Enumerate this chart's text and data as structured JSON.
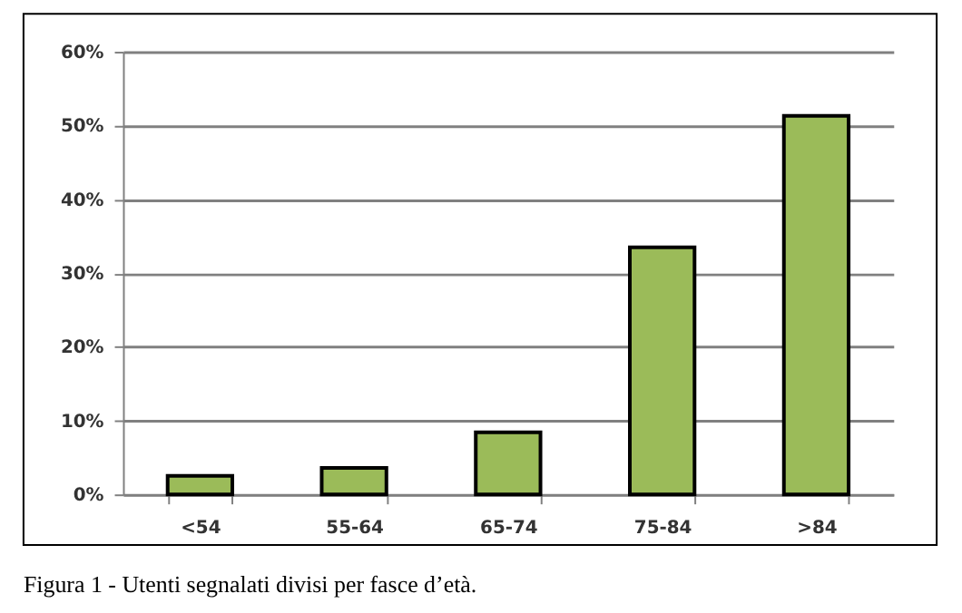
{
  "chart_data": {
    "type": "bar",
    "categories": [
      "<54",
      "55-64",
      "65-74",
      "75-84",
      ">84"
    ],
    "values": [
      2.5,
      3.6,
      8.4,
      33.5,
      51.3
    ],
    "color": "#9bbb59",
    "ylim": [
      0,
      60
    ],
    "yticks": [
      {
        "value": 0,
        "label": "0%"
      },
      {
        "value": 10,
        "label": "10%"
      },
      {
        "value": 20,
        "label": "20%"
      },
      {
        "value": 30,
        "label": "30%"
      },
      {
        "value": 40,
        "label": "40%"
      },
      {
        "value": 50,
        "label": "50%"
      },
      {
        "value": 60,
        "label": "60%"
      }
    ],
    "grid": "y",
    "annotations": [
      "Figura 1 - Utenti segnalati divisi per fasce d’età."
    ]
  }
}
